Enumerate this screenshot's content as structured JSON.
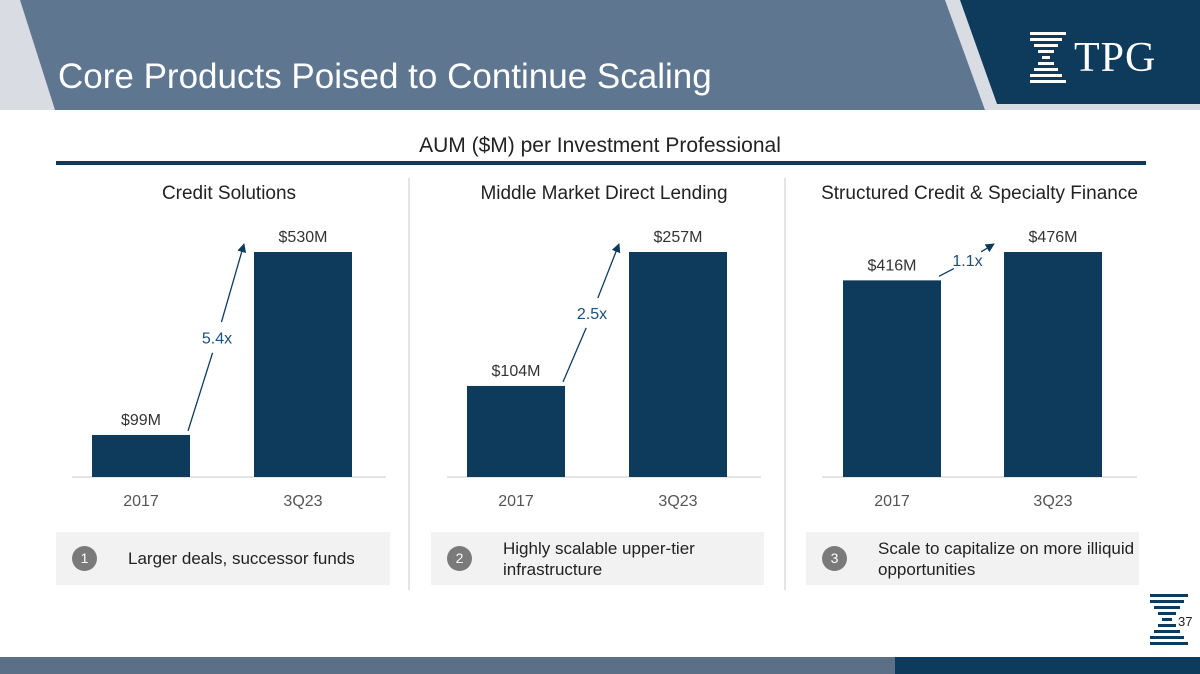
{
  "header": {
    "title": "Core Products Poised to Continue Scaling",
    "logo_text": "TPG",
    "band_color": "#5f7690",
    "brand_color": "#0e3a5c"
  },
  "subtitle": "AUM ($M) per Investment Professional",
  "chart_data": [
    {
      "type": "bar",
      "title": "Credit Solutions",
      "categories": [
        "2017",
        "3Q23"
      ],
      "values": [
        99,
        530
      ],
      "data_labels": [
        "$99M",
        "$530M"
      ],
      "growth_label": "5.4x",
      "ylabel": "AUM ($M) per Investment Professional",
      "ylim": [
        0,
        530
      ]
    },
    {
      "type": "bar",
      "title": "Middle Market Direct Lending",
      "categories": [
        "2017",
        "3Q23"
      ],
      "values": [
        104,
        257
      ],
      "data_labels": [
        "$104M",
        "$257M"
      ],
      "growth_label": "2.5x",
      "ylabel": "AUM ($M) per Investment Professional",
      "ylim": [
        0,
        257
      ]
    },
    {
      "type": "bar",
      "title": "Structured Credit & Specialty Finance",
      "categories": [
        "2017",
        "3Q23"
      ],
      "values": [
        416,
        476
      ],
      "data_labels": [
        "$416M",
        "$476M"
      ],
      "growth_label": "1.1x",
      "ylabel": "AUM ($M) per Investment Professional",
      "ylim": [
        0,
        476
      ]
    }
  ],
  "callouts": [
    {
      "number": "1",
      "text": "Larger deals, successor funds"
    },
    {
      "number": "2",
      "text": "Highly scalable upper-tier infrastructure"
    },
    {
      "number": "3",
      "text": "Scale to capitalize on more illiquid opportunities"
    }
  ],
  "page_number": "37"
}
